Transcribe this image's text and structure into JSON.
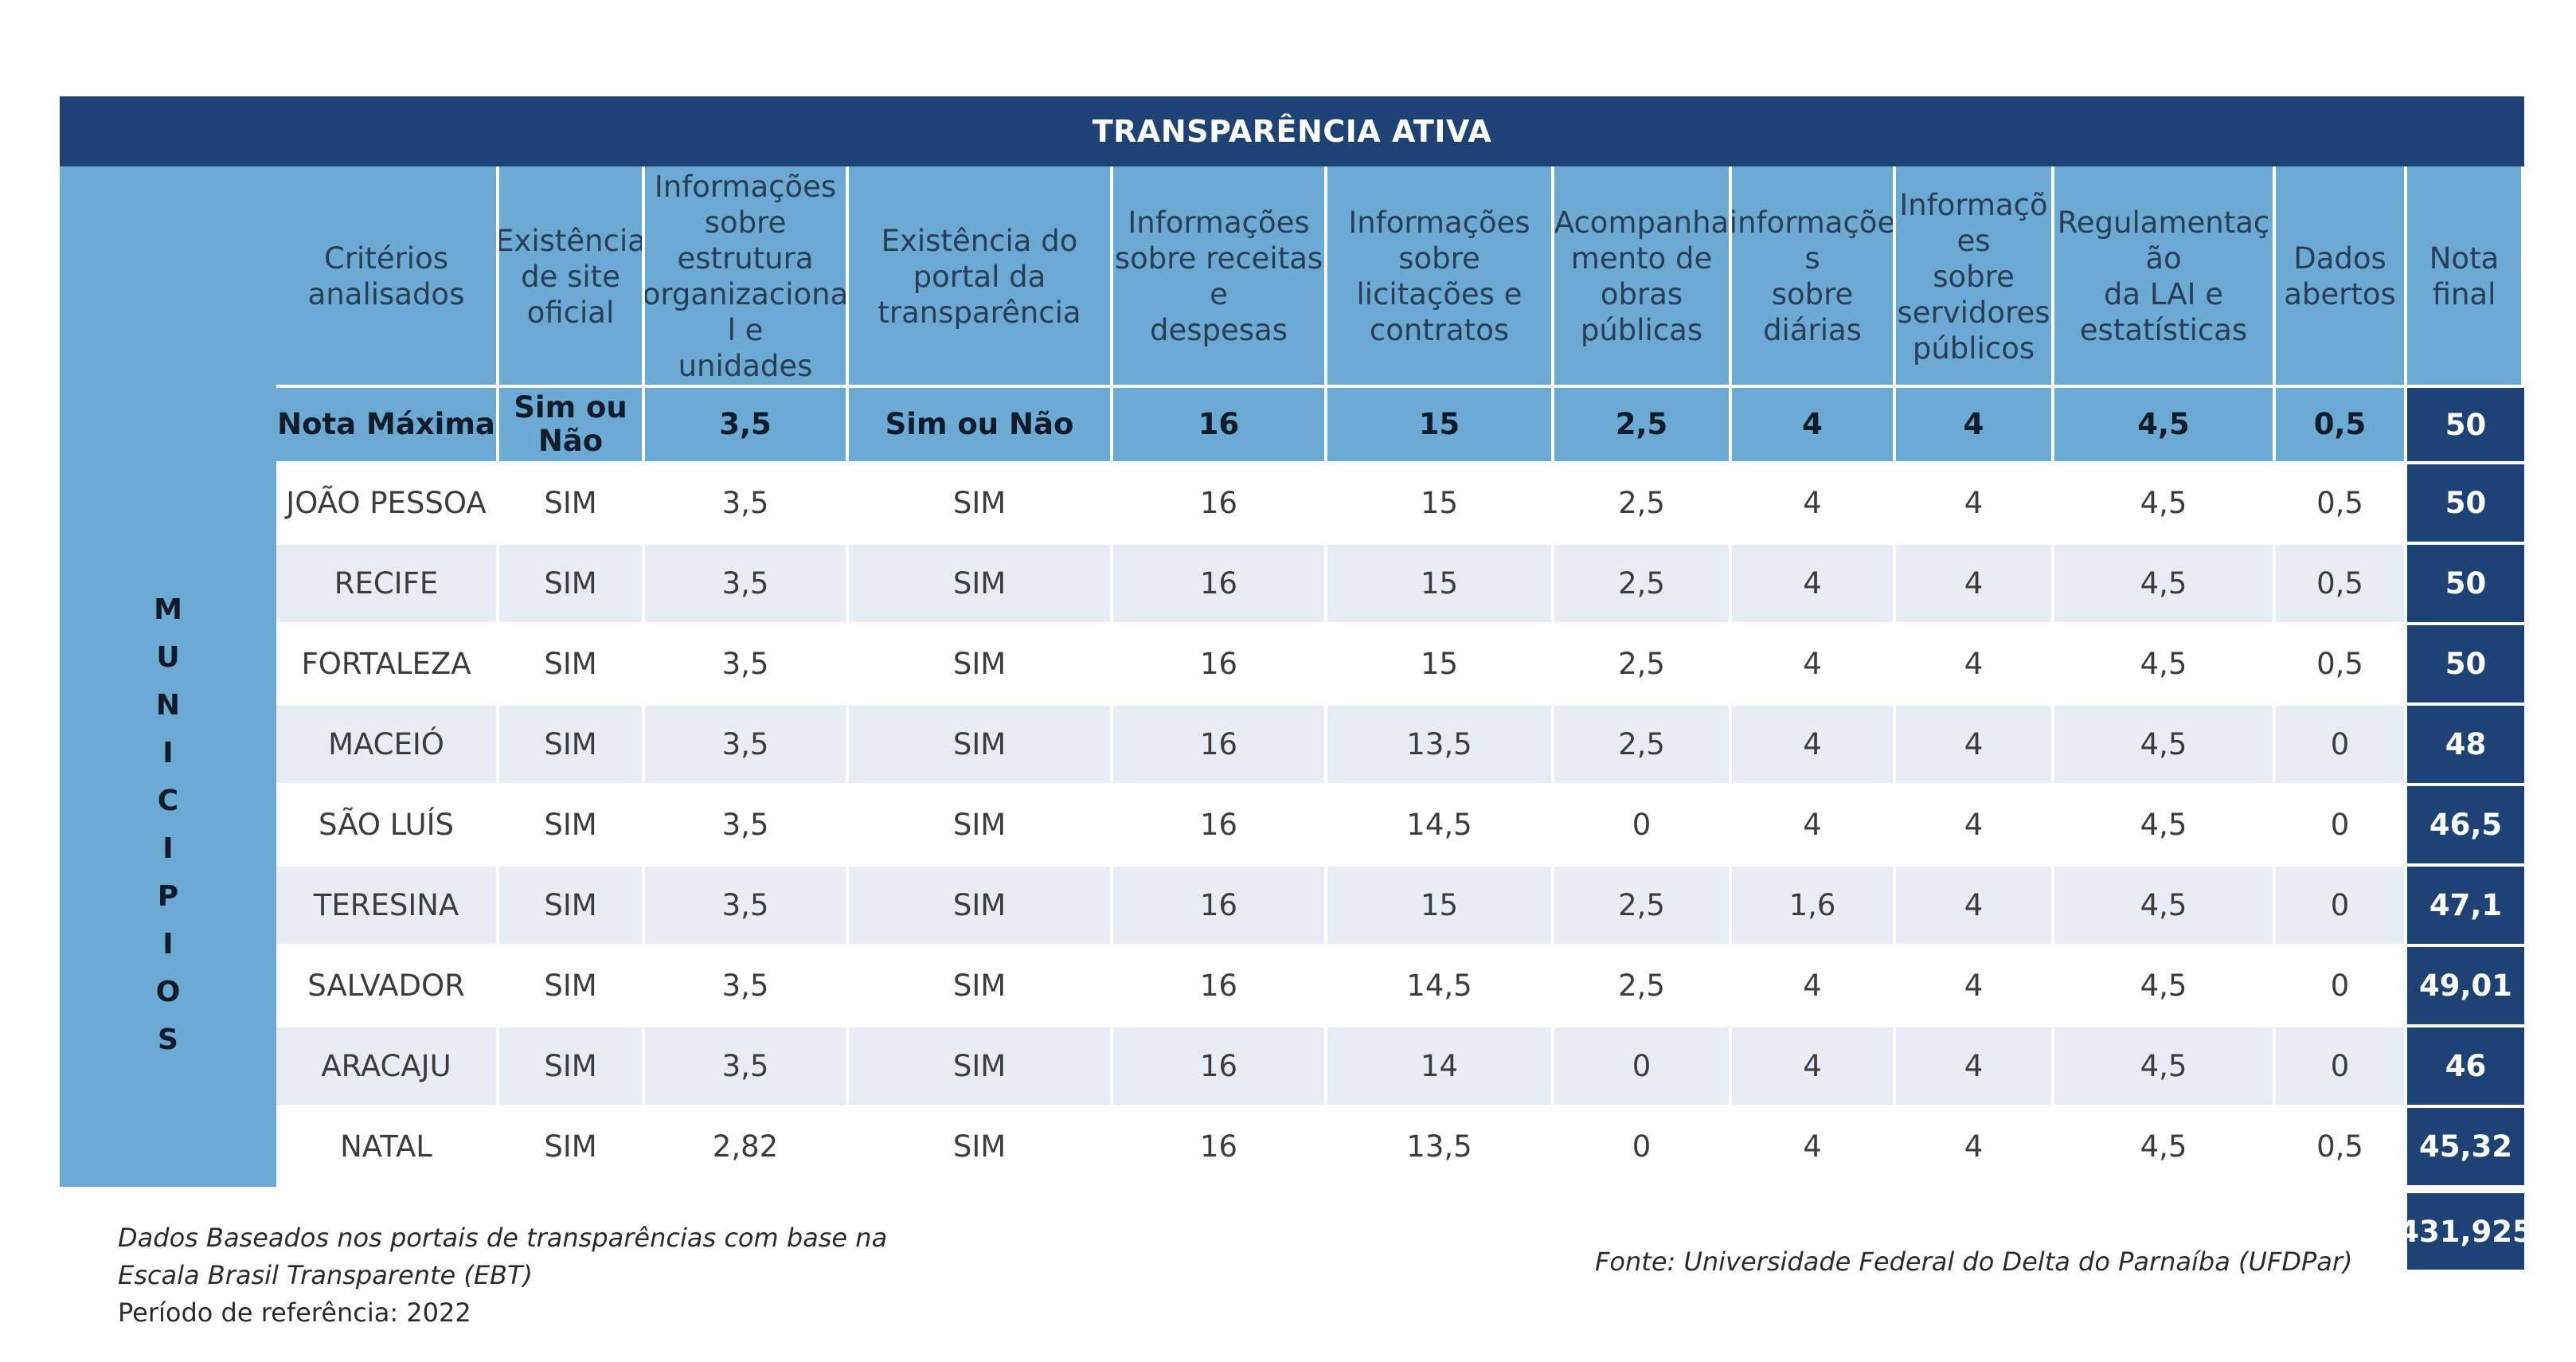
{
  "title": "TRANSPARÊNCIA ATIVA",
  "side_label": "MUNICIPIOS",
  "headers": [
    "Critérios\nanalisados",
    "Existência\nde site\noficial",
    "Informações\nsobre\nestrutura\norganizaciona\nl e\nunidades",
    "Existência do\nportal da\ntransparência",
    "Informações\nsobre receitas\ne\ndespesas",
    "Informações\nsobre\nlicitações e\ncontratos",
    "Acompanha\nmento de\nobras\npúblicas",
    "informaçõe\ns\nsobre\ndiárias",
    "Informaçõ\nes\nsobre\nservidores\npúblicos",
    "Regulamentaç\não\nda LAI e\nestatísticas",
    "Dados\nabertos",
    "Nota\nfinal"
  ],
  "max_row": [
    "Nota Máxima",
    "Sim ou\nNão",
    "3,5",
    "Sim ou Não",
    "16",
    "15",
    "2,5",
    "4",
    "4",
    "4,5",
    "0,5",
    "50"
  ],
  "rows": [
    [
      "JOÃO PESSOA",
      "SIM",
      "3,5",
      "SIM",
      "16",
      "15",
      "2,5",
      "4",
      "4",
      "4,5",
      "0,5",
      "50"
    ],
    [
      "RECIFE",
      "SIM",
      "3,5",
      "SIM",
      "16",
      "15",
      "2,5",
      "4",
      "4",
      "4,5",
      "0,5",
      "50"
    ],
    [
      "FORTALEZA",
      "SIM",
      "3,5",
      "SIM",
      "16",
      "15",
      "2,5",
      "4",
      "4",
      "4,5",
      "0,5",
      "50"
    ],
    [
      "MACEIÓ",
      "SIM",
      "3,5",
      "SIM",
      "16",
      "13,5",
      "2,5",
      "4",
      "4",
      "4,5",
      "0",
      "48"
    ],
    [
      "SÃO LUÍS",
      "SIM",
      "3,5",
      "SIM",
      "16",
      "14,5",
      "0",
      "4",
      "4",
      "4,5",
      "0",
      "46,5"
    ],
    [
      "TERESINA",
      "SIM",
      "3,5",
      "SIM",
      "16",
      "15",
      "2,5",
      "1,6",
      "4",
      "4,5",
      "0",
      "47,1"
    ],
    [
      "SALVADOR",
      "SIM",
      "3,5",
      "SIM",
      "16",
      "14,5",
      "2,5",
      "4",
      "4",
      "4,5",
      "0",
      "49,01"
    ],
    [
      "ARACAJU",
      "SIM",
      "3,5",
      "SIM",
      "16",
      "14",
      "0",
      "4",
      "4",
      "4,5",
      "0",
      "46"
    ],
    [
      "NATAL",
      "SIM",
      "2,82",
      "SIM",
      "16",
      "13,5",
      "0",
      "4",
      "4",
      "4,5",
      "0,5",
      "45,32"
    ]
  ],
  "total": "431,925",
  "footnotes": {
    "line1": "Dados Baseados nos portais de transparências com base na",
    "line2": "Escala Brasil Transparente (EBT)",
    "line3": "Período de referência: 2022",
    "source": "Fonte: Universidade Federal do Delta do Parnaíba (UFDPar)"
  },
  "colors": {
    "banner": "#1c4373",
    "header": "#6aaad3",
    "row_alt": "#e8ecf5",
    "final_score": "#1c4373"
  }
}
